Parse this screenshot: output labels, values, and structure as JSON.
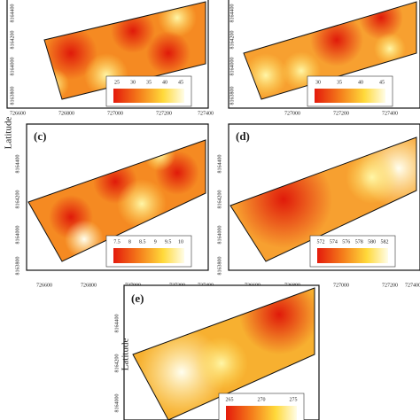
{
  "y_axis_label": "Latitude",
  "panels": [
    {
      "x_ticks": [
        "726600",
        "726800",
        "727000",
        "727200",
        "727400"
      ],
      "y_ticks": [
        "8164400",
        "8164200",
        "8164000",
        "8163800"
      ],
      "colorbar_ticks": [
        "25",
        "30",
        "35",
        "40",
        "45"
      ]
    },
    {
      "x_ticks": [
        "727000",
        "727200",
        "727400"
      ],
      "y_ticks": [
        "8164400",
        "8164200",
        "8164000",
        "8163800"
      ],
      "colorbar_ticks": [
        "30",
        "35",
        "40",
        "45"
      ]
    },
    {
      "label": "(c)",
      "x_ticks": [
        "726600",
        "726800",
        "727000",
        "727200",
        "727400"
      ],
      "y_ticks": [
        "8164400",
        "8164200",
        "8164000",
        "8163800"
      ],
      "colorbar_ticks": [
        "7.5",
        "8",
        "8.5",
        "9",
        "9.5",
        "10"
      ]
    },
    {
      "label": "(d)",
      "x_ticks": [
        "726600",
        "726800",
        "727000",
        "727200",
        "727400"
      ],
      "y_ticks": [
        "8164400",
        "8164200",
        "8164000",
        "8163800"
      ],
      "colorbar_ticks": [
        "572",
        "574",
        "576",
        "578",
        "580",
        "582"
      ]
    },
    {
      "label": "(e)",
      "y_label": "Latitude",
      "y_ticks": [
        "8164400",
        "8164200",
        "8164000"
      ],
      "colorbar_ticks": [
        "265",
        "270",
        "275"
      ]
    }
  ]
}
